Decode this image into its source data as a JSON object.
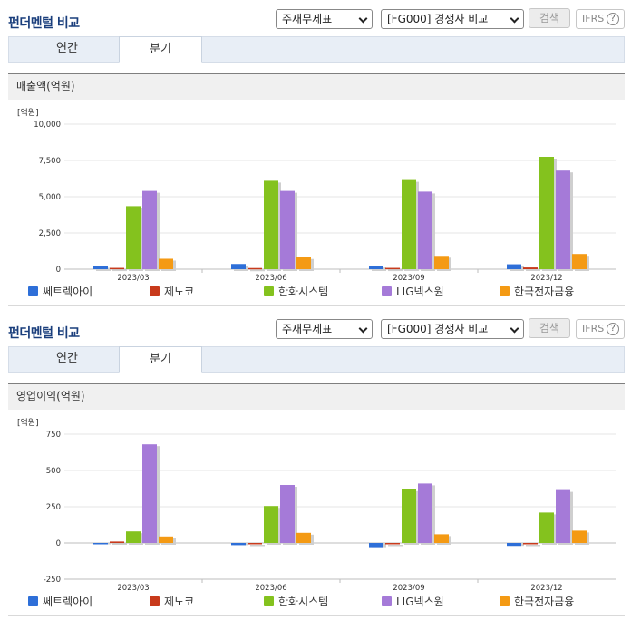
{
  "colors": {
    "series": [
      "#2e6fd8",
      "#c83a1c",
      "#84c21e",
      "#a57ad8",
      "#f49a14"
    ],
    "title": "#1a3e7c"
  },
  "panels": [
    {
      "title": "펀더멘털 비교",
      "select_item": "주재무제표",
      "select_peer": "[FG000] 경쟁사 비교",
      "search_label": "검색",
      "ifrs_label": "IFRS",
      "help_icon": "question-circle-icon",
      "tabs": [
        {
          "label": "연간",
          "active": false
        },
        {
          "label": "분기",
          "active": true
        }
      ],
      "metric_label": "매출액(억원)"
    },
    {
      "title": "펀더멘털 비교",
      "select_item": "주재무제표",
      "select_peer": "[FG000] 경쟁사 비교",
      "search_label": "검색",
      "ifrs_label": "IFRS",
      "help_icon": "question-circle-icon",
      "tabs": [
        {
          "label": "연간",
          "active": false
        },
        {
          "label": "분기",
          "active": true
        }
      ],
      "metric_label": "영업이익(억원)"
    }
  ],
  "chart_data": [
    {
      "type": "bar",
      "unit_label": "[억원]",
      "categories": [
        "2023/03",
        "2023/06",
        "2023/09",
        "2023/12"
      ],
      "ylim": [
        0,
        10000
      ],
      "yticks": [
        0,
        2500,
        5000,
        7500,
        10000
      ],
      "ytick_labels": [
        "0",
        "2,500",
        "5,000",
        "7,500",
        "10,000"
      ],
      "grid": true,
      "legend_position": "bottom",
      "series": [
        {
          "name": "쎄트렉아이",
          "values": [
            220,
            360,
            240,
            340
          ]
        },
        {
          "name": "제노코",
          "values": [
            90,
            80,
            90,
            120
          ]
        },
        {
          "name": "한화시스템",
          "values": [
            4350,
            6100,
            6150,
            7750
          ]
        },
        {
          "name": "LIG넥스원",
          "values": [
            5400,
            5400,
            5350,
            6800
          ]
        },
        {
          "name": "한국전자금융",
          "values": [
            720,
            830,
            920,
            1050
          ]
        }
      ]
    },
    {
      "type": "bar",
      "unit_label": "[억원]",
      "categories": [
        "2023/03",
        "2023/06",
        "2023/09",
        "2023/12"
      ],
      "ylim": [
        -250,
        750
      ],
      "yticks": [
        -250,
        0,
        250,
        500,
        750
      ],
      "ytick_labels": [
        "-250",
        "0",
        "250",
        "500",
        "750"
      ],
      "grid": true,
      "legend_position": "bottom",
      "series": [
        {
          "name": "쎄트렉아이",
          "values": [
            -5,
            -15,
            -35,
            -20
          ]
        },
        {
          "name": "제노코",
          "values": [
            10,
            0,
            0,
            0
          ]
        },
        {
          "name": "한화시스템",
          "values": [
            80,
            255,
            370,
            210
          ]
        },
        {
          "name": "LIG넥스원",
          "values": [
            680,
            400,
            410,
            365
          ]
        },
        {
          "name": "한국전자금융",
          "values": [
            45,
            70,
            60,
            85
          ]
        }
      ]
    }
  ]
}
